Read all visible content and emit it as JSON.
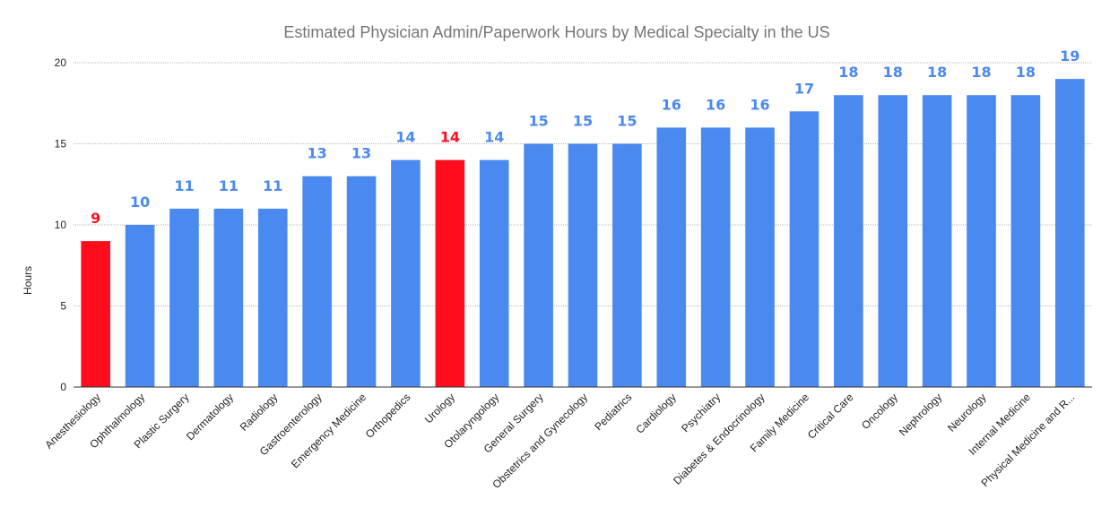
{
  "chart_data": {
    "type": "bar",
    "title": "Estimated Physician Admin/Paperwork Hours by Medical Specialty in the US",
    "xlabel": "",
    "ylabel": "Hours",
    "ylim": [
      0,
      20
    ],
    "yticks": [
      0,
      5,
      10,
      15,
      20
    ],
    "grid": true,
    "legend": "none",
    "categories": [
      "Anesthesiology",
      "Ophthalmology",
      "Plastic Surgery",
      "Dermatology",
      "Radiology",
      "Gastroenterology",
      "Emergency Medicine",
      "Orthopedics",
      "Urology",
      "Otolaryngology",
      "General Surgery",
      "Obstetrics and Gynecology",
      "Pediatrics",
      "Cardiology",
      "Psychiatry",
      "Diabetes & Endocrinology",
      "Family Medicine",
      "Critical Care",
      "Oncology",
      "Nephrology",
      "Neurology",
      "Internal Medicine",
      "Physical Medicine and R..."
    ],
    "values": [
      9,
      10,
      11,
      11,
      11,
      13,
      13,
      14,
      14,
      14,
      15,
      15,
      15,
      16,
      16,
      16,
      17,
      18,
      18,
      18,
      18,
      18,
      19
    ],
    "highlighted": [
      "Anesthesiology",
      "Urology"
    ],
    "colors": {
      "bar": "#4a89ef",
      "highlight": "#ff0d1d",
      "label": "#4a89ef",
      "highlight_label": "#ff0d1d"
    }
  }
}
